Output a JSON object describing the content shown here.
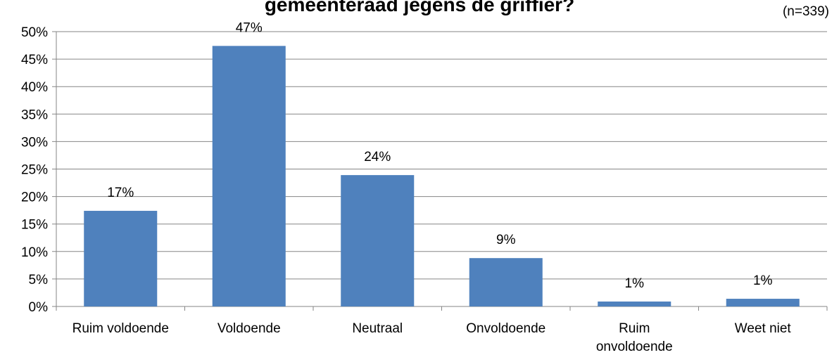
{
  "chart_data": {
    "type": "bar",
    "title": "gemeenteraad jegens de griffier?",
    "annotation": "(n=339)",
    "categories": [
      "Ruim voldoende",
      "Voldoende",
      "Neutraal",
      "Onvoldoende",
      "Ruim onvoldoende",
      "Weet niet"
    ],
    "values": [
      17.4,
      47.4,
      23.9,
      8.8,
      0.9,
      1.4
    ],
    "value_labels": [
      "17%",
      "47%",
      "24%",
      "9%",
      "1%",
      "1%"
    ],
    "color": "#4f81bd",
    "ylim": [
      0,
      50
    ],
    "yticks": [
      {
        "value": 0,
        "label": "0%"
      },
      {
        "value": 5,
        "label": "5%"
      },
      {
        "value": 10,
        "label": "10%"
      },
      {
        "value": 15,
        "label": "15%"
      },
      {
        "value": 20,
        "label": "20%"
      },
      {
        "value": 25,
        "label": "25%"
      },
      {
        "value": 30,
        "label": "30%"
      },
      {
        "value": 35,
        "label": "35%"
      },
      {
        "value": 40,
        "label": "40%"
      },
      {
        "value": 45,
        "label": "45%"
      },
      {
        "value": 50,
        "label": "50%"
      }
    ],
    "grid": true
  }
}
